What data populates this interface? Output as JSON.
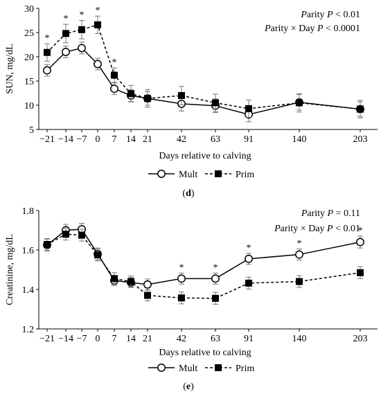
{
  "chart_data": [
    {
      "type": "line",
      "panel_label": "(d)",
      "ylabel": "SUN, mg/dL",
      "xlabel": "Days relative to calving",
      "ylim": [
        5,
        30
      ],
      "yticks": [
        5,
        10,
        15,
        20,
        25,
        30
      ],
      "grid": false,
      "legend_placement": "bottom",
      "x": [
        -21,
        -14,
        -7,
        0,
        7,
        14,
        21,
        42,
        63,
        91,
        140,
        203
      ],
      "series": [
        {
          "name": "Mult",
          "marker": "open-circle",
          "line": "solid",
          "values": [
            17.2,
            21.0,
            21.8,
            18.5,
            13.4,
            12.0,
            11.4,
            10.3,
            9.9,
            8.1,
            10.6,
            9.2
          ],
          "errors": [
            1.2,
            1.2,
            1.2,
            1.2,
            1.2,
            1.2,
            1.4,
            1.5,
            1.4,
            1.5,
            1.6,
            1.5
          ]
        },
        {
          "name": "Prim",
          "marker": "filled-square",
          "line": "dashed",
          "values": [
            20.9,
            24.8,
            25.6,
            26.6,
            16.2,
            12.4,
            11.4,
            12.0,
            10.5,
            9.3,
            10.5,
            9.2
          ],
          "errors": [
            1.8,
            1.9,
            1.9,
            1.8,
            1.5,
            1.7,
            1.8,
            1.9,
            1.8,
            1.8,
            1.9,
            1.8
          ]
        }
      ],
      "significance_x": [
        -21,
        -14,
        -7,
        0,
        7
      ],
      "significance_mark": "*",
      "annotations": [
        "Parity P < 0.01",
        "Parity × Day P < 0.0001"
      ]
    },
    {
      "type": "line",
      "panel_label": "(e)",
      "ylabel": "Creatinine, mg/dL",
      "xlabel": "Days relative to calving",
      "ylim": [
        1.2,
        1.8
      ],
      "yticks": [
        1.2,
        1.4,
        1.6,
        1.8
      ],
      "grid": false,
      "legend_placement": "bottom",
      "x": [
        -21,
        -14,
        -7,
        0,
        7,
        14,
        21,
        42,
        63,
        91,
        140,
        203
      ],
      "series": [
        {
          "name": "Mult",
          "marker": "open-circle",
          "line": "solid",
          "values": [
            1.625,
            1.7,
            1.705,
            1.58,
            1.445,
            1.435,
            1.425,
            1.455,
            1.455,
            1.555,
            1.577,
            1.64
          ],
          "errors": [
            0.03,
            0.03,
            0.03,
            0.03,
            0.025,
            0.025,
            0.028,
            0.028,
            0.028,
            0.028,
            0.028,
            0.03
          ]
        },
        {
          "name": "Prim",
          "marker": "filled-square",
          "line": "dashed",
          "values": [
            1.628,
            1.68,
            1.675,
            1.575,
            1.455,
            1.44,
            1.37,
            1.357,
            1.355,
            1.432,
            1.44,
            1.485
          ],
          "errors": [
            0.03,
            0.03,
            0.03,
            0.03,
            0.03,
            0.028,
            0.028,
            0.03,
            0.03,
            0.03,
            0.03,
            0.03
          ]
        }
      ],
      "significance_x": [
        42,
        63,
        91,
        140,
        203
      ],
      "significance_mark": "*",
      "annotations": [
        "Parity P = 0.11",
        "Parity × Day P < 0.01"
      ]
    }
  ]
}
